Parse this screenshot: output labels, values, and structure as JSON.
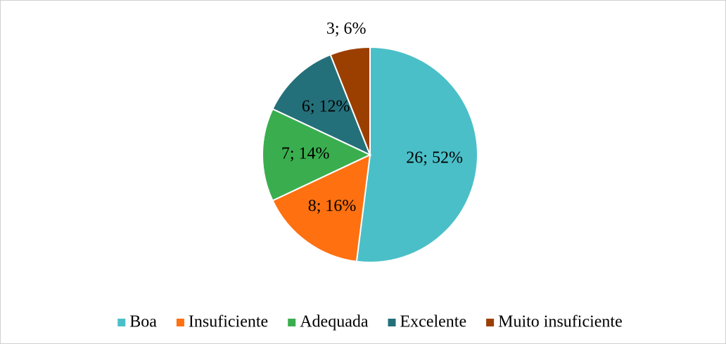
{
  "chart_data": {
    "type": "pie",
    "categories": [
      "Boa",
      "Insuficiente",
      "Adequada",
      "Excelente",
      "Muito insuficiente"
    ],
    "values": [
      26,
      8,
      7,
      6,
      3
    ],
    "value_labels": [
      "26; 52%",
      "8; 16%",
      "7; 14%",
      "6; 12%",
      "3; 6%"
    ],
    "colors": [
      "#4bbfc8",
      "#ff7010",
      "#3aae4f",
      "#24707a",
      "#9b3f00"
    ],
    "legend": "bottom"
  }
}
